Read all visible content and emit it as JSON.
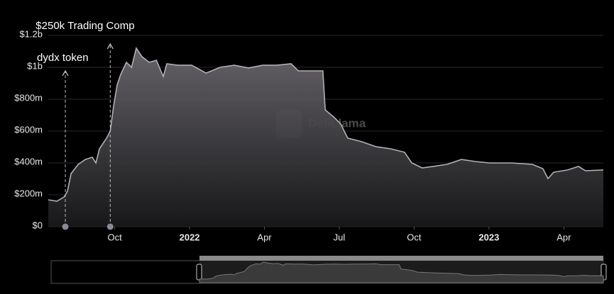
{
  "chart_data": {
    "type": "area",
    "color": "#b3afb6",
    "watermark": "DefiLlama",
    "grid": true,
    "xlim": [
      2021.528,
      2023.382
    ],
    "xticks": [
      {
        "value": 2021.75,
        "label": "Oct"
      },
      {
        "value": 2022,
        "label": "2022"
      },
      {
        "value": 2022.25,
        "label": "Apr"
      },
      {
        "value": 2022.5,
        "label": "Jul"
      },
      {
        "value": 2022.75,
        "label": "Oct"
      },
      {
        "value": 2023,
        "label": "2023"
      },
      {
        "value": 2023.25,
        "label": "Apr"
      }
    ],
    "ylim": [
      0,
      1200000000
    ],
    "yticks": [
      {
        "value": 0,
        "label": "$0"
      },
      {
        "value": 200000000,
        "label": "$200m"
      },
      {
        "value": 400000000,
        "label": "$400m"
      },
      {
        "value": 600000000,
        "label": "$600m"
      },
      {
        "value": 800000000,
        "label": "$800m"
      },
      {
        "value": 1000000000,
        "label": "$1b"
      },
      {
        "value": 1200000000,
        "label": "$1.2b"
      }
    ],
    "x": [
      2021.528,
      2021.557,
      2021.581,
      2021.592,
      2021.604,
      2021.628,
      2021.652,
      2021.675,
      2021.687,
      2021.699,
      2021.723,
      2021.735,
      2021.746,
      2021.758,
      2021.77,
      2021.789,
      2021.806,
      2021.822,
      2021.841,
      2021.865,
      2021.889,
      2021.912,
      2021.924,
      2021.96,
      2022.007,
      2022.055,
      2022.102,
      2022.149,
      2022.197,
      2022.244,
      2022.291,
      2022.339,
      2022.363,
      2022.41,
      2022.445,
      2022.453,
      2022.481,
      2022.505,
      2022.528,
      2022.576,
      2022.623,
      2022.671,
      2022.718,
      2022.742,
      2022.777,
      2022.813,
      2022.86,
      2022.908,
      2022.955,
      2023.002,
      2023.073,
      2023.145,
      2023.18,
      2023.197,
      2023.216,
      2023.263,
      2023.299,
      2023.322,
      2023.382
    ],
    "values": [
      169000000,
      160000000,
      187000000,
      222000000,
      333000000,
      391000000,
      422000000,
      436000000,
      400000000,
      489000000,
      556000000,
      600000000,
      756000000,
      889000000,
      956000000,
      1031000000,
      1000000000,
      1120000000,
      1067000000,
      1031000000,
      1044000000,
      942000000,
      1022000000,
      1013000000,
      1013000000,
      964000000,
      1000000000,
      1013000000,
      996000000,
      1013000000,
      1013000000,
      1022000000,
      978000000,
      978000000,
      978000000,
      733000000,
      689000000,
      644000000,
      556000000,
      533000000,
      502000000,
      489000000,
      467000000,
      400000000,
      369000000,
      378000000,
      391000000,
      422000000,
      409000000,
      400000000,
      400000000,
      391000000,
      364000000,
      302000000,
      342000000,
      356000000,
      378000000,
      351000000,
      356000000
    ],
    "annotations": [
      {
        "text": "dydx token",
        "x": 2021.585
      },
      {
        "text": "$250k Trading Comp",
        "x": 2021.735
      }
    ]
  }
}
